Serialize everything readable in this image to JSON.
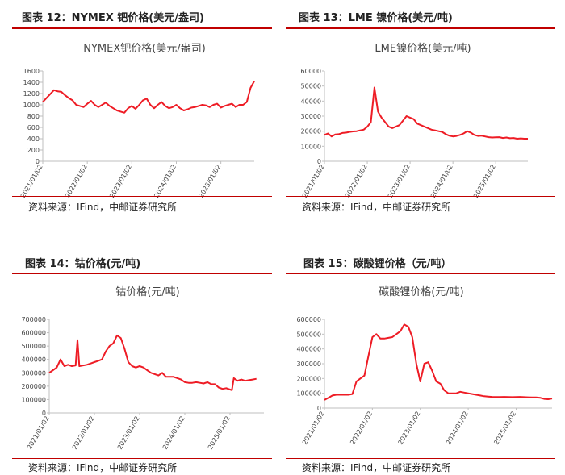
{
  "panels": [
    {
      "figure_label": "图表 12：NYMEX 钯价格(美元/盎司)",
      "source": "资料来源：IFind，中邮证券研究所"
    },
    {
      "figure_label": "图表 13：LME 镍价格(美元/吨)",
      "source": "资料来源：IFind，中邮证券研究所"
    },
    {
      "figure_label": "图表 14：钴价格(元/吨)",
      "source": "资料来源：IFind，中邮证券研究所"
    },
    {
      "figure_label": "图表 15：碳酸锂价格（元/吨）",
      "source": "资料来源：IFind，中邮证券研究所"
    }
  ],
  "colors": {
    "series": "#ee1c25",
    "rule": "#c00000",
    "axis": "#bfbfbf"
  },
  "chart_data": [
    {
      "type": "line",
      "title": "NYMEX钯价格(美元/盎司)",
      "yticks": [
        "0",
        "200",
        "400",
        "600",
        "800",
        "1000",
        "1200",
        "1400",
        "1600"
      ],
      "ylim": [
        0,
        1600
      ],
      "xlim": [
        0,
        57
      ],
      "xticks": [
        {
          "x": 0,
          "label": "2021/01/02"
        },
        {
          "x": 12,
          "label": "2022/01/02"
        },
        {
          "x": 24,
          "label": "2023/01/02"
        },
        {
          "x": 36,
          "label": "2024/01/02"
        },
        {
          "x": 48,
          "label": "2025/01/02"
        }
      ],
      "series": [
        {
          "x": [
            0,
            1,
            2,
            3,
            4,
            5,
            6,
            7,
            8,
            9,
            10,
            11,
            12,
            13,
            14,
            15,
            16,
            17,
            18,
            19,
            20,
            21,
            22,
            23,
            24,
            25,
            26,
            27,
            28,
            29,
            30,
            31,
            32,
            33,
            34,
            35,
            36,
            37,
            38,
            39,
            40,
            41,
            42,
            43,
            44,
            45,
            46,
            47,
            48,
            49,
            50,
            51,
            52,
            53,
            54,
            55,
            56,
            57
          ],
          "values": [
            1050,
            1120,
            1190,
            1260,
            1240,
            1230,
            1170,
            1120,
            1080,
            1000,
            980,
            960,
            1020,
            1070,
            1000,
            960,
            1000,
            1040,
            980,
            940,
            900,
            880,
            860,
            940,
            980,
            930,
            1000,
            1080,
            1110,
            1000,
            940,
            1000,
            1050,
            980,
            940,
            960,
            1000,
            940,
            900,
            920,
            950,
            960,
            980,
            1000,
            990,
            960,
            1000,
            1020,
            950,
            980,
            1000,
            1020,
            960,
            1000,
            1000,
            1050,
            1300,
            1420
          ]
        }
      ]
    },
    {
      "type": "line",
      "title": "LME镍价格(美元/吨)",
      "yticks": [
        "0",
        "10000",
        "20000",
        "30000",
        "40000",
        "50000",
        "60000"
      ],
      "ylim": [
        0,
        60000
      ],
      "xlim": [
        0,
        57
      ],
      "xticks": [
        {
          "x": 0,
          "label": "2021/01/02"
        },
        {
          "x": 12,
          "label": "2022/01/02"
        },
        {
          "x": 24,
          "label": "2023/01/02"
        },
        {
          "x": 36,
          "label": "2024/01/02"
        },
        {
          "x": 48,
          "label": "2025/01/02"
        }
      ],
      "series": [
        {
          "x": [
            0,
            1,
            2,
            3,
            4,
            5,
            6,
            7,
            8,
            9,
            10,
            11,
            12,
            13,
            14,
            15,
            16,
            17,
            18,
            19,
            20,
            21,
            22,
            23,
            24,
            25,
            26,
            27,
            28,
            29,
            30,
            31,
            32,
            33,
            34,
            35,
            36,
            37,
            38,
            39,
            40,
            41,
            42,
            43,
            44,
            45,
            46,
            47,
            48,
            49,
            50,
            51,
            52,
            53,
            54,
            55,
            56,
            57
          ],
          "values": [
            17500,
            18500,
            16500,
            17800,
            18000,
            18800,
            19000,
            19500,
            19800,
            20000,
            20500,
            21000,
            23000,
            26000,
            49000,
            33000,
            29000,
            26000,
            23000,
            22000,
            23000,
            24000,
            27000,
            30000,
            29000,
            28000,
            25000,
            24000,
            23000,
            22000,
            21000,
            20500,
            20000,
            19500,
            18000,
            17000,
            16500,
            16800,
            17500,
            18500,
            20000,
            19000,
            17500,
            16800,
            17000,
            16500,
            16000,
            15800,
            15900,
            16000,
            15500,
            15800,
            15300,
            15500,
            15000,
            15200,
            15000,
            15000
          ]
        }
      ]
    },
    {
      "type": "line",
      "title": "钴价格(元/吨)",
      "yticks": [
        "0",
        "100000",
        "200000",
        "300000",
        "400000",
        "500000",
        "600000",
        "700000"
      ],
      "ylim": [
        0,
        700000
      ],
      "xlim": [
        0,
        57
      ],
      "xticks": [
        {
          "x": 0,
          "label": "2021/01/02"
        },
        {
          "x": 12,
          "label": "2022/01/02"
        },
        {
          "x": 24,
          "label": "2023/01/02"
        },
        {
          "x": 36,
          "label": "2024/01/02"
        },
        {
          "x": 48,
          "label": "2025/01/02"
        }
      ],
      "series": [
        {
          "x": [
            0,
            1,
            2,
            3,
            4,
            5,
            6,
            7,
            7.5,
            8,
            9,
            10,
            11,
            12,
            13,
            14,
            15,
            16,
            17,
            18,
            19,
            20,
            21,
            22,
            23,
            24,
            25,
            26,
            27,
            28,
            29,
            30,
            31,
            32,
            33,
            34,
            35,
            36,
            37,
            38,
            39,
            40,
            41,
            42,
            43,
            44,
            45,
            46,
            47,
            48,
            48.5,
            49,
            50,
            51,
            52,
            53,
            54,
            55
          ],
          "values": [
            300000,
            320000,
            340000,
            400000,
            350000,
            360000,
            350000,
            355000,
            545000,
            350000,
            355000,
            360000,
            370000,
            380000,
            390000,
            400000,
            460000,
            500000,
            520000,
            580000,
            560000,
            480000,
            380000,
            350000,
            340000,
            350000,
            340000,
            320000,
            300000,
            290000,
            280000,
            300000,
            270000,
            270000,
            270000,
            260000,
            250000,
            230000,
            225000,
            225000,
            230000,
            225000,
            220000,
            230000,
            215000,
            215000,
            190000,
            180000,
            185000,
            175000,
            170000,
            260000,
            240000,
            250000,
            240000,
            245000,
            250000,
            255000
          ]
        }
      ]
    },
    {
      "type": "line",
      "title": "碳酸锂价格(元/吨)",
      "yticks": [
        "0",
        "100000",
        "200000",
        "300000",
        "400000",
        "500000",
        "600000"
      ],
      "ylim": [
        0,
        600000
      ],
      "xlim": [
        0,
        57
      ],
      "xticks": [
        {
          "x": 0,
          "label": "2021/01/02"
        },
        {
          "x": 12,
          "label": "2022/01/02"
        },
        {
          "x": 24,
          "label": "2023/01/02"
        },
        {
          "x": 36,
          "label": "2024/01/02"
        },
        {
          "x": 48,
          "label": "2025/01/02"
        }
      ],
      "series": [
        {
          "x": [
            0,
            1,
            2,
            3,
            4,
            5,
            6,
            7,
            8,
            9,
            10,
            11,
            12,
            13,
            14,
            15,
            16,
            17,
            18,
            19,
            20,
            21,
            22,
            23,
            24,
            25,
            26,
            27,
            28,
            29,
            30,
            31,
            32,
            33,
            34,
            35,
            36,
            37,
            38,
            39,
            40,
            41,
            42,
            43,
            44,
            45,
            46,
            47,
            48,
            49,
            50,
            51,
            52,
            53,
            54,
            55,
            56,
            57
          ],
          "values": [
            55000,
            70000,
            85000,
            90000,
            90000,
            90000,
            90000,
            95000,
            180000,
            200000,
            220000,
            350000,
            480000,
            500000,
            470000,
            470000,
            475000,
            480000,
            500000,
            520000,
            565000,
            550000,
            480000,
            300000,
            180000,
            300000,
            310000,
            250000,
            180000,
            165000,
            120000,
            100000,
            100000,
            100000,
            110000,
            105000,
            100000,
            95000,
            90000,
            85000,
            80000,
            78000,
            76000,
            75000,
            75000,
            76000,
            75000,
            74000,
            75000,
            76000,
            74000,
            73000,
            72000,
            72000,
            70000,
            62000,
            60000,
            65000
          ]
        }
      ]
    }
  ]
}
